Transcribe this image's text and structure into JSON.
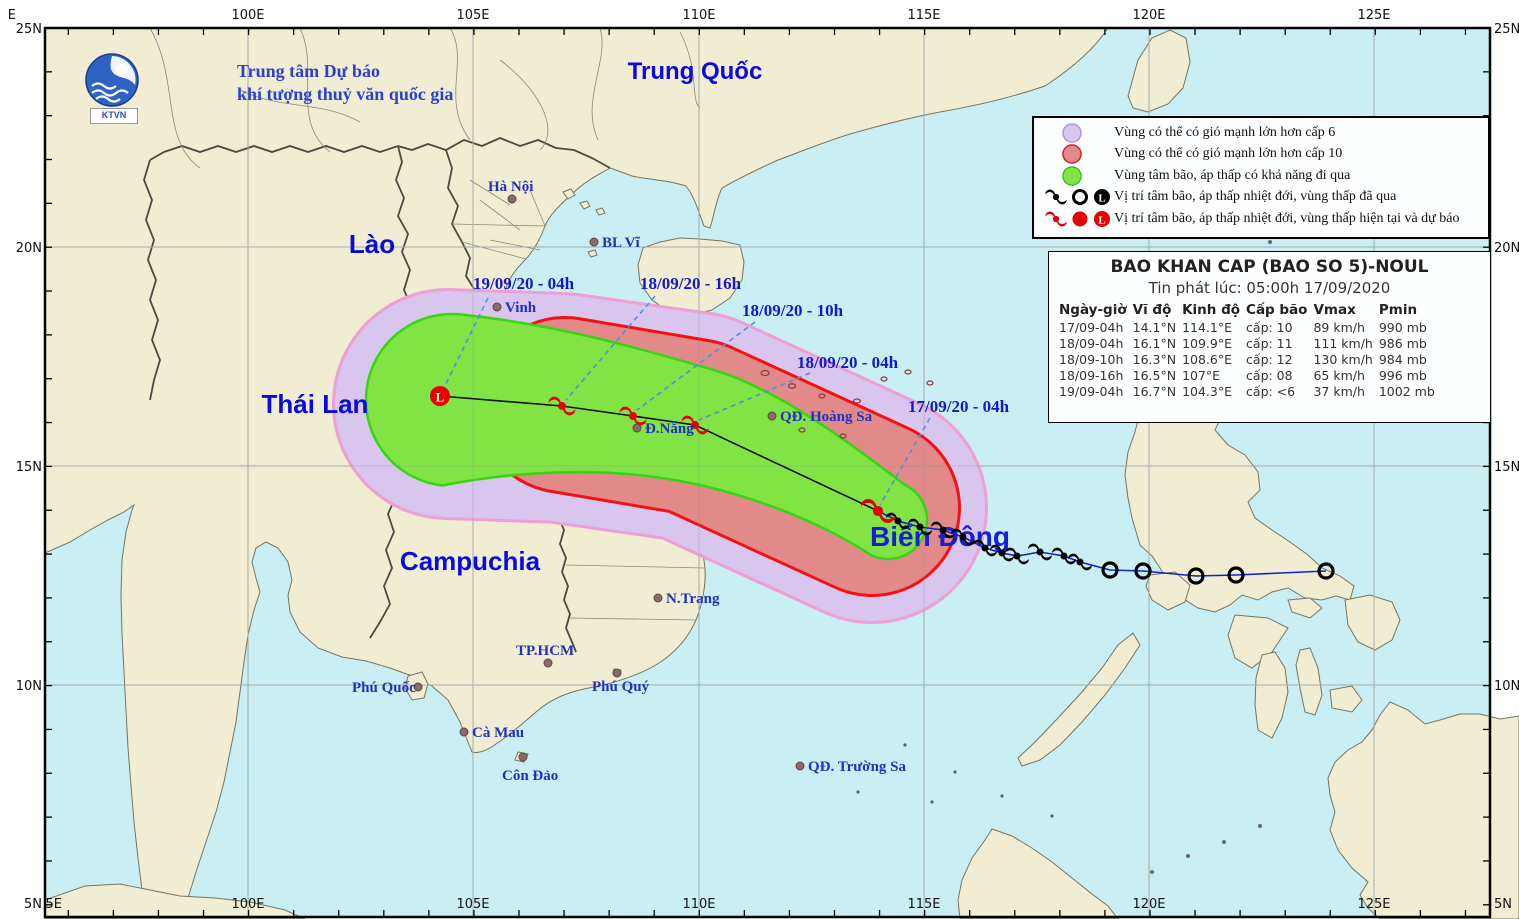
{
  "logo": {
    "text": "KTVN"
  },
  "agency": {
    "line1": "Trung tâm Dự báo",
    "line2": "khí tượng thuỷ văn quốc gia"
  },
  "legend": {
    "items": [
      {
        "label": "Vùng có thể có gió mạnh lớn hơn cấp 6"
      },
      {
        "label": "Vùng có thể có gió mạnh lớn hơn cấp 10"
      },
      {
        "label": "Vùng tâm bão, áp thấp có khả năng đi qua"
      },
      {
        "label": "Vị trí tâm bão, áp thấp nhiệt đới, vùng thấp đã qua"
      },
      {
        "label": "Vị trí tâm bão, áp thấp nhiệt đới, vùng thấp hiện tại và dự báo"
      }
    ]
  },
  "bulletin": {
    "title": "BAO KHAN CAP (BAO SO 5)-NOUL",
    "issued": "Tin phát lúc: 05:00h 17/09/2020",
    "columns": [
      "Ngày-giờ",
      "Vĩ độ",
      "Kinh độ",
      "Cấp bão",
      "Vmax",
      "Pmin"
    ],
    "rows": [
      [
        "17/09-04h",
        "14.1°N",
        "114.1°E",
        "cấp: 10",
        "89 km/h",
        "990 mb"
      ],
      [
        "18/09-04h",
        "16.1°N",
        "109.9°E",
        "cấp: 11",
        "111 km/h",
        "986 mb"
      ],
      [
        "18/09-10h",
        "16.3°N",
        "108.6°E",
        "cấp: 12",
        "130 km/h",
        "984 mb"
      ],
      [
        "18/09-16h",
        "16.5°N",
        "107°E",
        "cấp: 08",
        "65 km/h",
        "996 mb"
      ],
      [
        "19/09-04h",
        "16.7°N",
        "104.3°E",
        "cấp: <6",
        "37 km/h",
        "1002 mb"
      ]
    ]
  },
  "map": {
    "countries": {
      "china": "Trung Quốc",
      "laos": "Lào",
      "thailand": "Thái Lan",
      "cambodia": "Campuchia"
    },
    "sea": "Biển Đông",
    "cities": {
      "hanoi": "Hà Nội",
      "blvi": "BL Vĩ",
      "vinh": "Vinh",
      "danang": "Đ.Nẵng",
      "ntrang": "N.Trang",
      "hcm": "TP.HCM",
      "phuquoc": "Phú Quốc",
      "phuquy": "Phú Quý",
      "camau": "Cà Mau",
      "condao": "Côn Đảo",
      "truongsa": "QĐ. Trường Sa",
      "hoangsa": "QĐ. Hoàng Sa"
    },
    "waypoints": [
      "19/09/20 - 04h",
      "18/09/20 - 16h",
      "18/09/20 - 10h",
      "18/09/20 - 04h",
      "17/09/20 - 04h"
    ],
    "marker_l": "L",
    "axis": {
      "top": [
        "E",
        "100E",
        "105E",
        "110E",
        "115E",
        "120E",
        "125E"
      ],
      "bottom": [
        "5E",
        "100E",
        "105E",
        "110E",
        "115E",
        "120E",
        "125E"
      ],
      "left": [
        "25N",
        "20N",
        "15N",
        "10N",
        "5N"
      ],
      "right": [
        "25N",
        "20N",
        "15N",
        "10N",
        "5N"
      ]
    }
  },
  "colors": {
    "sea": "#c9eff4",
    "land": "#f0edd3",
    "cone_six": "#d8c6ee",
    "cone_six_border": "#ee9fd4",
    "cone_ten": "#e28a8a",
    "cone_ten_border": "#f51111",
    "cone_center": "#82e344",
    "cone_center_border": "#35d611",
    "track_past": "#000000",
    "track_future": "#e60000"
  }
}
